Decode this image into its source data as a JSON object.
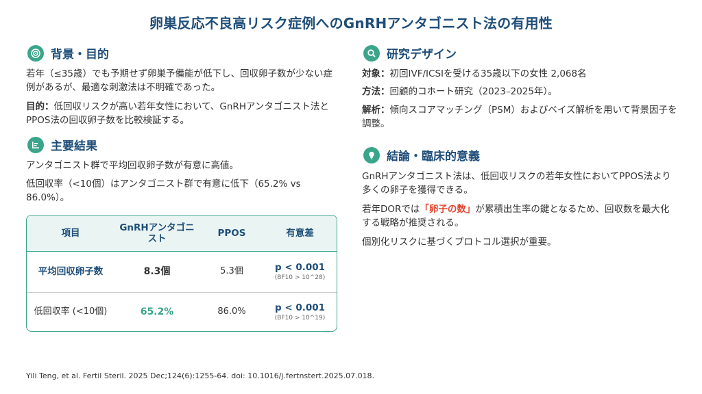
{
  "title": "卵巣反応不良高リスク症例へのGnRHアンタゴニスト法の有用性",
  "colors": {
    "accent": "#3aa58a",
    "heading": "#1f4e79",
    "highlight": "#e0452f"
  },
  "background": {
    "icon": "target-icon",
    "heading": "背景・目的",
    "text1": "若年（≤35歳）でも予期せず卵巣予備能が低下し、回収卵子数が少ない症例があるが、最適な刺激法は不明確であった。",
    "purpose_label": "目的：",
    "purpose_text": "低回収リスクが高い若年女性において、GnRHアンタゴニスト法とPPOS法の回収卵子数を比較検証する。"
  },
  "results": {
    "icon": "bar-chart-icon",
    "heading": "主要結果",
    "text1": "アンタゴニスト群で平均回収卵子数が有意に高値。",
    "text2": "低回収率（<10個）はアンタゴニスト群で有意に低下（65.2% vs 86.0%）。"
  },
  "table": {
    "headers": [
      "項目",
      "GnRHアンタゴニスト",
      "PPOS",
      "有意差"
    ],
    "rows": [
      {
        "item": "平均回収卵子数",
        "antagonist": "8.3個",
        "ppos": "5.3個",
        "p": "p < 0.001",
        "bf": "(BF10 > 10^28)"
      },
      {
        "item": "低回収率 (<10個)",
        "antagonist": "65.2%",
        "ppos": "86.0%",
        "p": "p < 0.001",
        "bf": "(BF10 > 10^19)"
      }
    ]
  },
  "design": {
    "icon": "search-icon",
    "heading": "研究デザイン",
    "subject_label": "対象：",
    "subject_text": "初回IVF/ICSIを受ける35歳以下の女性 2,068名",
    "method_label": "方法：",
    "method_text": "回顧的コホート研究（2023–2025年）。",
    "analysis_label": "解析：",
    "analysis_text": "傾向スコアマッチング（PSM）およびベイズ解析を用いて背景因子を調整。"
  },
  "conclusion": {
    "icon": "lightbulb-icon",
    "heading": "結論・臨床的意義",
    "text1": "GnRHアンタゴニスト法は、低回収リスクの若年女性においてPPOS法より多くの卵子を獲得できる。",
    "text2_pre": "若年DORでは",
    "text2_highlight": "「卵子の数」",
    "text2_post": "が累積出生率の鍵となるため、回収数を最大化する戦略が推奨される。",
    "text3": "個別化リスクに基づくプロトコル選択が重要。"
  },
  "citation": "Yili Teng, et al. Fertil Steril. 2025 Dec;124(6):1255-64. doi: 10.1016/j.fertnstert.2025.07.018."
}
